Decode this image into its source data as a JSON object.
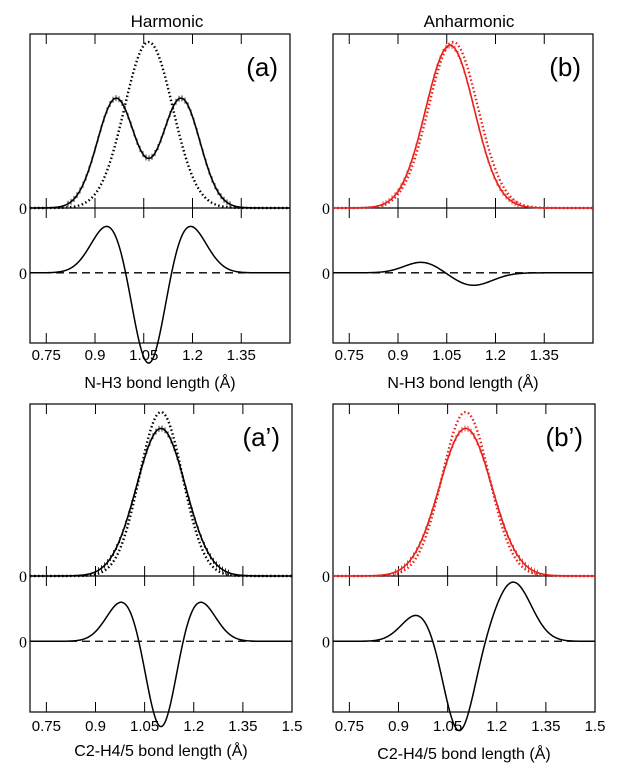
{
  "figure": {
    "col_titles": [
      "Harmonic",
      "Anharmonic"
    ],
    "zero_tick_label": "0"
  },
  "chart_data": [
    {
      "id": "a",
      "type": "line",
      "panel_label": "(a)",
      "xlabel": "N-H3 bond length (Å)",
      "xlim": [
        0.7,
        1.5
      ],
      "xticks": [
        0.75,
        0.9,
        1.05,
        1.2,
        1.35
      ],
      "xtick_labels": [
        "0.75",
        "0.9",
        "1.05",
        "1.2",
        "1.35"
      ],
      "color": "#000000",
      "top": {
        "ylim": [
          0,
          1.0
        ],
        "solid": [
          {
            "a": 0.66,
            "mu": 0.965,
            "s": 0.058
          },
          {
            "a": 0.66,
            "mu": 1.165,
            "s": 0.058
          }
        ],
        "dotted": [
          {
            "a": 1.0,
            "mu": 1.065,
            "s": 0.074
          }
        ]
      },
      "bottom": {
        "ylim": [
          -1.2,
          0.65
        ],
        "diff": [
          {
            "a": -1.1,
            "mu": 1.065,
            "s": 0.048
          },
          {
            "a": 0.55,
            "mu": 0.945,
            "s": 0.055
          },
          {
            "a": 0.55,
            "mu": 1.185,
            "s": 0.055
          }
        ]
      }
    },
    {
      "id": "b",
      "type": "line",
      "panel_label": "(b)",
      "xlabel": "N-H3 bond length (Å)",
      "xlim": [
        0.7,
        1.5
      ],
      "xticks": [
        0.75,
        0.9,
        1.05,
        1.2,
        1.35
      ],
      "xtick_labels": [
        "0.75",
        "0.9",
        "1.05",
        "1.2",
        "1.35"
      ],
      "color": "#e8201b",
      "top": {
        "ylim": [
          0,
          1.0
        ],
        "solid": [
          {
            "a": 0.98,
            "mu": 1.06,
            "s": 0.075
          }
        ],
        "dotted": [
          {
            "a": 1.0,
            "mu": 1.07,
            "s": 0.076
          }
        ]
      },
      "bottom": {
        "ylim": [
          -1.2,
          0.65
        ],
        "diff": [
          {
            "a": 0.12,
            "mu": 0.975,
            "s": 0.055
          },
          {
            "a": -0.14,
            "mu": 1.13,
            "s": 0.06
          }
        ]
      }
    },
    {
      "id": "a2",
      "type": "line",
      "panel_label": "(a’)",
      "xlabel": "C2-H4/5 bond length (Å)",
      "xlim": [
        0.7,
        1.5
      ],
      "xticks": [
        0.75,
        0.9,
        1.05,
        1.2,
        1.35,
        1.5
      ],
      "xtick_labels": [
        "0.75",
        "0.9",
        "1.05",
        "1.2",
        "1.35",
        "1.5"
      ],
      "color": "#000000",
      "top": {
        "ylim": [
          0,
          1.0
        ],
        "solid": [
          {
            "a": 0.9,
            "mu": 1.1,
            "s": 0.075
          }
        ],
        "dotted": [
          {
            "a": 1.0,
            "mu": 1.1,
            "s": 0.066
          }
        ]
      },
      "bottom": {
        "ylim": [
          -1.2,
          0.65
        ],
        "diff": [
          {
            "a": -1.0,
            "mu": 1.1,
            "s": 0.043
          },
          {
            "a": 0.45,
            "mu": 0.985,
            "s": 0.05
          },
          {
            "a": 0.45,
            "mu": 1.215,
            "s": 0.05
          }
        ]
      }
    },
    {
      "id": "b2",
      "type": "line",
      "panel_label": "(b’)",
      "xlabel": "C2-H4/5 bond length (Å)",
      "xlim": [
        0.7,
        1.5
      ],
      "xticks": [
        0.75,
        0.9,
        1.05,
        1.2,
        1.35,
        1.5
      ],
      "xtick_labels": [
        "0.75",
        "0.9",
        "1.05",
        "1.2",
        "1.35",
        "1.5"
      ],
      "color": "#e8201b",
      "top": {
        "ylim": [
          0,
          1.0
        ],
        "solid": [
          {
            "a": 0.9,
            "mu": 1.105,
            "s": 0.08
          }
        ],
        "dotted": [
          {
            "a": 1.0,
            "mu": 1.105,
            "s": 0.072
          }
        ]
      },
      "bottom": {
        "ylim": [
          -1.2,
          0.65
        ],
        "diff": [
          {
            "a": -1.0,
            "mu": 1.085,
            "s": 0.045
          },
          {
            "a": 0.3,
            "mu": 0.96,
            "s": 0.05
          },
          {
            "a": 0.65,
            "mu": 1.25,
            "s": 0.055
          }
        ]
      }
    }
  ]
}
